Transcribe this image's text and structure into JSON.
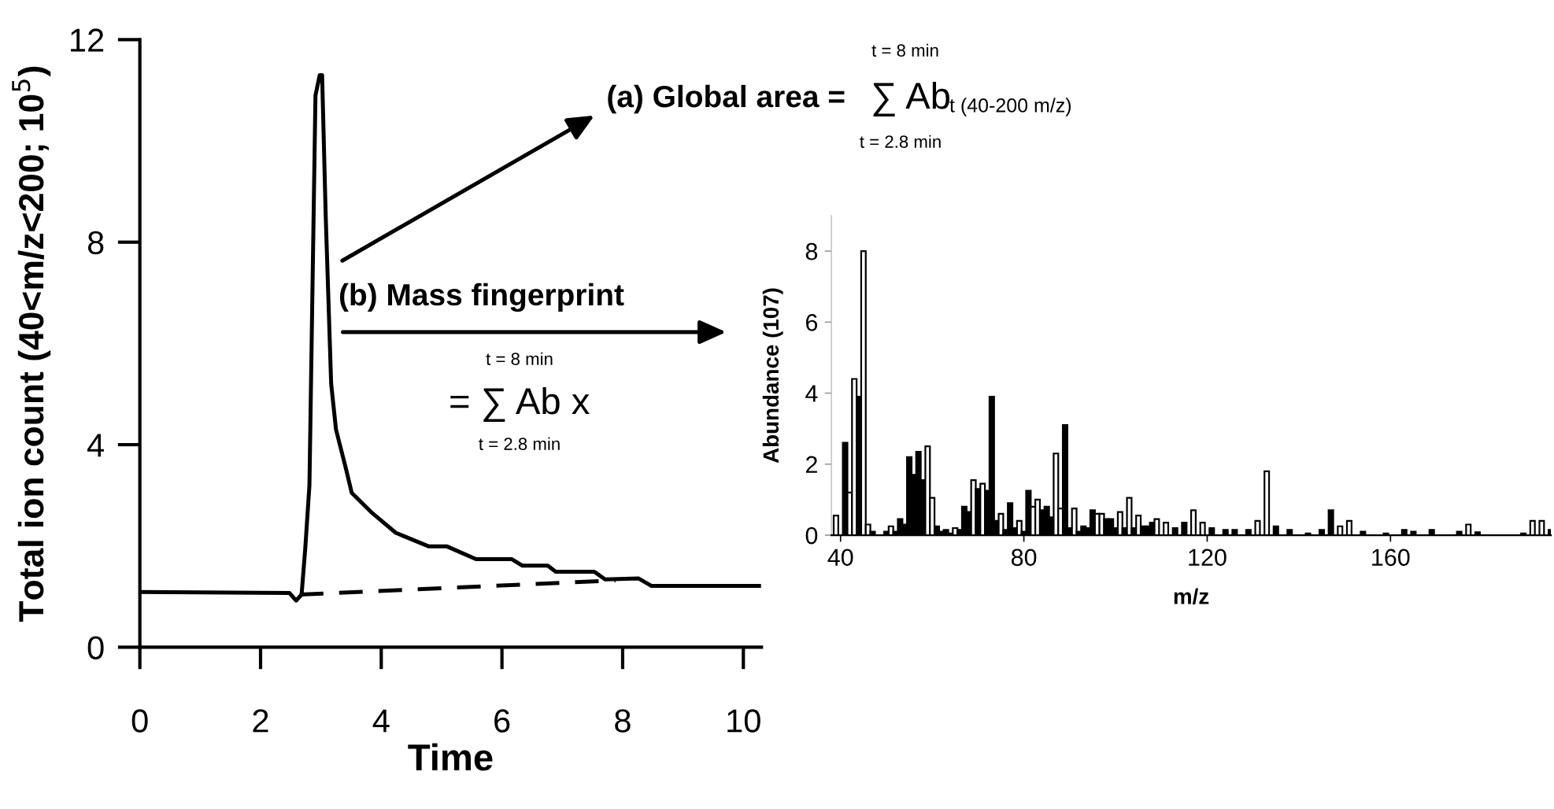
{
  "chart_data": [
    {
      "type": "line",
      "xlabel": "Time",
      "ylabel": "Total ion count (40<m/z<200; 10$^{5}$)",
      "xlim": [
        0,
        10.3
      ],
      "ylim": [
        0,
        12
      ],
      "xticks": [
        0,
        2,
        4,
        6,
        8,
        10
      ],
      "yticks": [
        0,
        4,
        8,
        12
      ],
      "grid": false,
      "legend": false,
      "series": [
        {
          "color": "#000000",
          "line_style": "solid",
          "x": [
            0,
            2.48,
            2.59,
            2.68,
            2.74,
            2.81,
            2.91,
            2.98,
            3.02,
            3.08,
            3.17,
            3.25,
            3.42,
            3.51,
            3.85,
            4.24,
            4.79,
            5.09,
            5.57,
            6.16,
            6.34,
            6.76,
            6.89,
            7.53,
            7.71,
            8.26,
            8.48,
            10.26
          ],
          "values": [
            1.09,
            1.07,
            0.92,
            1.04,
            1.94,
            3.2,
            10.9,
            11.3,
            11.3,
            8.5,
            5.2,
            4.3,
            3.5,
            3.05,
            2.65,
            2.26,
            1.99,
            1.99,
            1.74,
            1.74,
            1.61,
            1.61,
            1.49,
            1.49,
            1.34,
            1.36,
            1.21,
            1.21
          ]
        },
        {
          "color": "#000000",
          "line_style": "dashed",
          "x": [
            2.65,
            7.88
          ],
          "values": [
            1.04,
            1.32
          ]
        }
      ],
      "annotations": [
        "(a) Global area =",
        "∑ Ab",
        "t (40-200 m/z)",
        "t = 8 min",
        "t = 2.8 min",
        "(b) Mass fingerprint",
        "= ∑ Ab x",
        "t = 8 min",
        "t = 2.8 min"
      ]
    },
    {
      "type": "bar",
      "xlabel": "m/z",
      "ylabel": "Abundance (107)",
      "xlim": [
        38,
        195
      ],
      "ylim": [
        0,
        9
      ],
      "xticks": [
        40,
        80,
        120,
        160
      ],
      "yticks": [
        0,
        2,
        4,
        6,
        8
      ],
      "grid": false,
      "legend": false,
      "x": [
        39,
        41,
        42,
        43,
        44,
        45,
        46,
        47,
        50,
        51,
        52,
        53,
        54,
        55,
        56,
        57,
        58,
        59,
        60,
        61,
        62,
        63,
        64,
        65,
        66,
        67,
        68,
        69,
        70,
        71,
        72,
        73,
        74,
        75,
        76,
        77,
        78,
        79,
        80,
        81,
        82,
        83,
        84,
        85,
        86,
        87,
        88,
        89,
        90,
        91,
        92,
        93,
        94,
        95,
        96,
        97,
        98,
        99,
        100,
        101,
        102,
        103,
        104,
        105,
        106,
        107,
        108,
        109,
        111,
        113,
        115,
        117,
        119,
        121,
        124,
        126,
        129,
        131,
        133,
        135,
        138,
        142,
        145,
        147,
        149,
        151,
        154,
        159,
        163,
        165,
        169,
        175,
        177,
        179,
        189,
        191,
        193,
        195
      ],
      "values": [
        0.55,
        2.6,
        1.2,
        4.4,
        3.9,
        8.0,
        0.3,
        0.1,
        0.1,
        0.25,
        0.1,
        0.45,
        0.3,
        2.2,
        1.7,
        2.35,
        1.55,
        2.5,
        1.05,
        0.25,
        0.1,
        0.15,
        0.05,
        0.2,
        0.15,
        0.8,
        0.65,
        1.55,
        1.3,
        1.45,
        1.25,
        3.9,
        0.4,
        0.6,
        0.15,
        0.9,
        0.2,
        0.4,
        0.1,
        1.25,
        0.8,
        1.0,
        0.7,
        0.8,
        0.5,
        2.3,
        0.75,
        3.1,
        0.2,
        0.75,
        0.1,
        0.25,
        0.2,
        0.7,
        0.6,
        0.6,
        0.45,
        0.45,
        0.2,
        0.65,
        0.2,
        1.05,
        0.2,
        0.55,
        0.25,
        0.25,
        0.35,
        0.45,
        0.35,
        0.2,
        0.35,
        0.7,
        0.35,
        0.2,
        0.15,
        0.15,
        0.15,
        0.4,
        1.8,
        0.25,
        0.15,
        0.05,
        0.15,
        0.7,
        0.25,
        0.4,
        0.1,
        0.05,
        0.15,
        0.1,
        0.15,
        0.1,
        0.3,
        0.08,
        0.05,
        0.4,
        0.4,
        0.15
      ],
      "colors": [
        "#ffffff",
        "#000000",
        "#ffffff",
        "#ffffff",
        "#000000",
        "#ffffff",
        "#ffffff",
        "#000000",
        "#000000",
        "#ffffff",
        "#000000",
        "#000000",
        "#000000",
        "#000000",
        "#000000",
        "#000000",
        "#000000",
        "#ffffff",
        "#ffffff",
        "#000000",
        "#000000",
        "#000000",
        "#000000",
        "#ffffff",
        "#000000",
        "#000000",
        "#000000",
        "#ffffff",
        "#000000",
        "#ffffff",
        "#000000",
        "#000000",
        "#000000",
        "#ffffff",
        "#000000",
        "#000000",
        "#000000",
        "#ffffff",
        "#000000",
        "#000000",
        "#ffffff",
        "#ffffff",
        "#000000",
        "#000000",
        "#000000",
        "#ffffff",
        "#ffffff",
        "#000000",
        "#000000",
        "#ffffff",
        "#000000",
        "#000000",
        "#000000",
        "#000000",
        "#ffffff",
        "#ffffff",
        "#000000",
        "#000000",
        "#000000",
        "#ffffff",
        "#000000",
        "#ffffff",
        "#000000",
        "#ffffff",
        "#000000",
        "#000000",
        "#000000",
        "#ffffff",
        "#ffffff",
        "#000000",
        "#000000",
        "#ffffff",
        "#ffffff",
        "#000000",
        "#000000",
        "#000000",
        "#000000",
        "#ffffff",
        "#ffffff",
        "#000000",
        "#000000",
        "#000000",
        "#000000",
        "#000000",
        "#ffffff",
        "#ffffff",
        "#000000",
        "#000000",
        "#000000",
        "#000000",
        "#000000",
        "#000000",
        "#ffffff",
        "#000000",
        "#000000",
        "#ffffff",
        "#ffffff",
        "#000000"
      ]
    }
  ]
}
